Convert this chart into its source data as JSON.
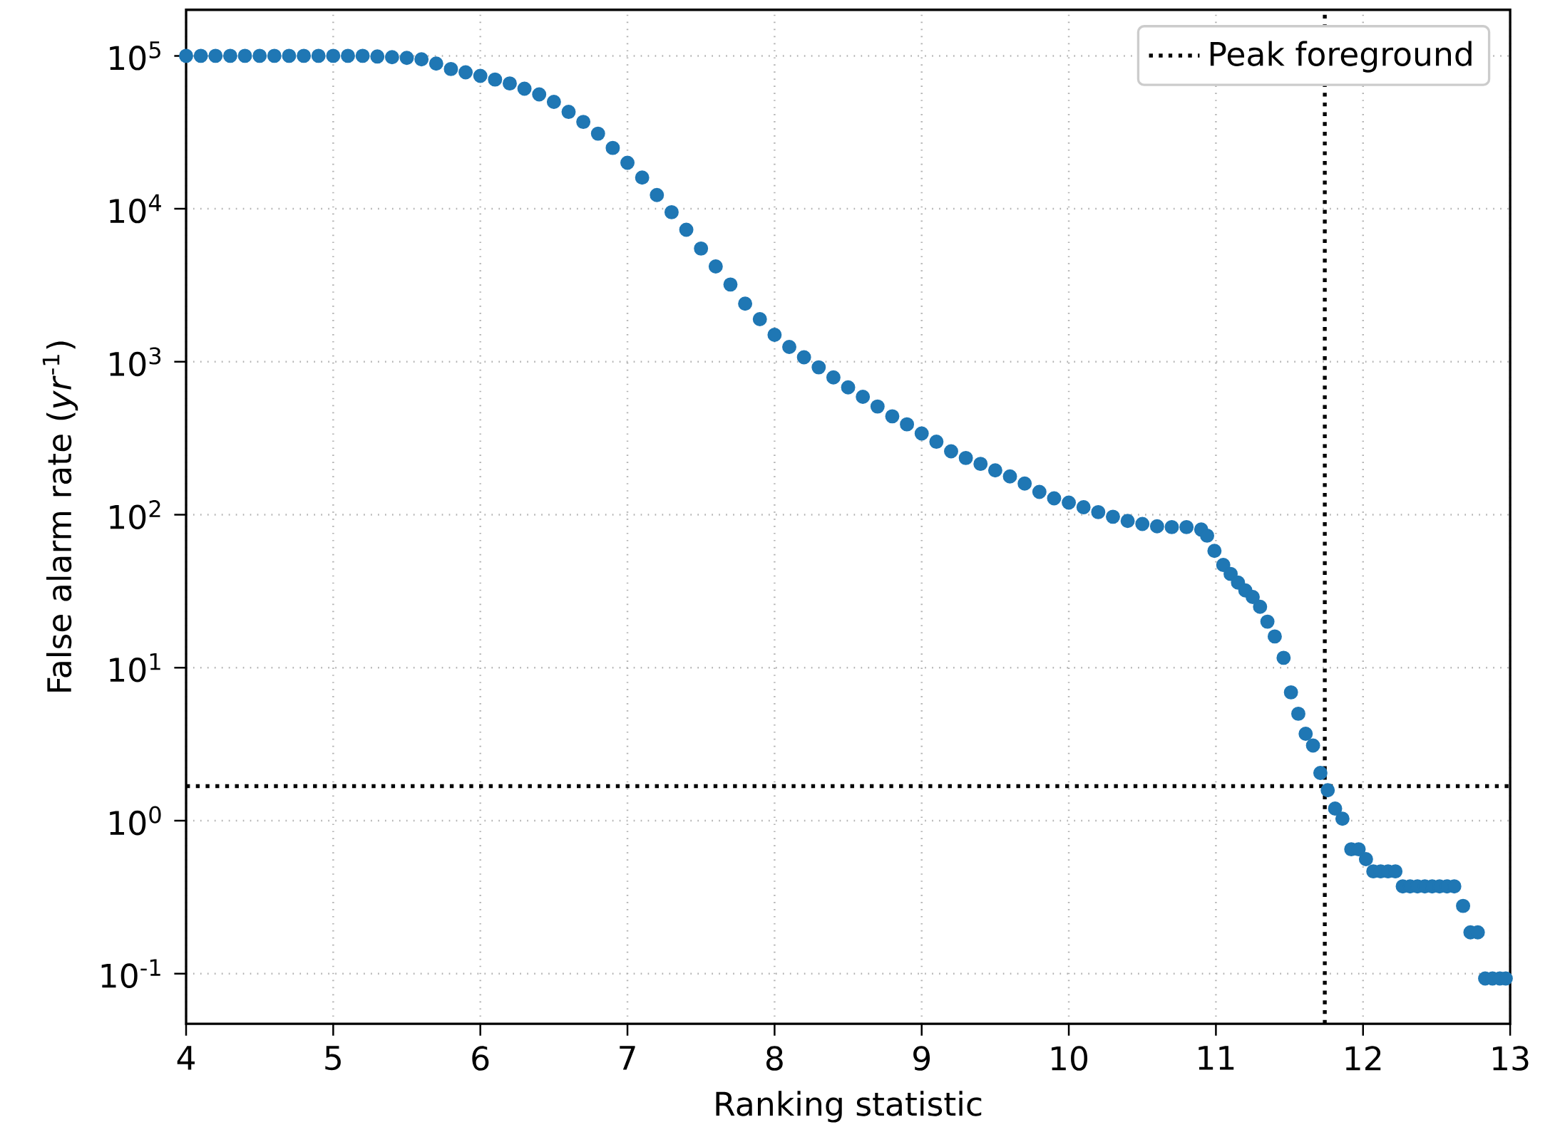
{
  "chart_data": {
    "type": "scatter",
    "xlabel": "Ranking statistic",
    "ylabel": "False alarm rate (*yr*$^{-1}$)",
    "xlim": [
      4,
      13
    ],
    "ylim": [
      0.047,
      200000
    ],
    "log": "y",
    "grid": true,
    "legend": "top right",
    "xticks": [
      4,
      5,
      6,
      7,
      8,
      9,
      10,
      11,
      12,
      13
    ],
    "yticks": [
      {
        "value": 0.1,
        "label": "10$^{-1}$"
      },
      {
        "value": 1,
        "label": "10$^{0}$"
      },
      {
        "value": 10,
        "label": "10$^{1}$"
      },
      {
        "value": 100,
        "label": "10$^{2}$"
      },
      {
        "value": 1000,
        "label": "10$^{3}$"
      },
      {
        "value": 10000,
        "label": "10$^{4}$"
      },
      {
        "value": 100000,
        "label": "10$^{5}$"
      }
    ],
    "ref_lines": [
      {
        "axis": "x",
        "value": 11.74,
        "label": "Peak foreground",
        "color": "#000000",
        "line_style": "dotted"
      },
      {
        "axis": "y",
        "value": 1.68,
        "color": "#000000",
        "line_style": "dotted"
      }
    ],
    "series": [
      {
        "color": "#1f77b4",
        "x": [
          4.0,
          4.1,
          4.2,
          4.3,
          4.4,
          4.5,
          4.6,
          4.7,
          4.8,
          4.9,
          5.0,
          5.1,
          5.2,
          5.3,
          5.4,
          5.5,
          5.6,
          5.7,
          5.8,
          5.9,
          6.0,
          6.1,
          6.2,
          6.3,
          6.4,
          6.5,
          6.6,
          6.7,
          6.8,
          6.9,
          7.0,
          7.1,
          7.2,
          7.3,
          7.4,
          7.5,
          7.6,
          7.7,
          7.8,
          7.9,
          8.0,
          8.1,
          8.2,
          8.3,
          8.4,
          8.5,
          8.6,
          8.7,
          8.8,
          8.9,
          9.0,
          9.1,
          9.2,
          9.3,
          9.4,
          9.5,
          9.6,
          9.7,
          9.8,
          9.9,
          10.0,
          10.1,
          10.2,
          10.3,
          10.4,
          10.5,
          10.6,
          10.7,
          10.8,
          10.9,
          10.94,
          10.99,
          11.05,
          11.1,
          11.15,
          11.2,
          11.25,
          11.3,
          11.35,
          11.4,
          11.46,
          11.51,
          11.56,
          11.61,
          11.66,
          11.71,
          11.76,
          11.81,
          11.86,
          11.92,
          11.97,
          12.02,
          12.07,
          12.12,
          12.17,
          12.22,
          12.27,
          12.32,
          12.37,
          12.42,
          12.47,
          12.52,
          12.57,
          12.62,
          12.68,
          12.73,
          12.78,
          12.83,
          12.88,
          12.93,
          12.97
        ],
        "values": [
          100000,
          100000,
          100000,
          100000,
          100000,
          100000,
          100000,
          100000,
          100000,
          100000,
          100000,
          100000,
          100000,
          99000,
          98000,
          97000,
          95000,
          89000,
          82000,
          78000,
          74000,
          70000,
          66000,
          61000,
          56000,
          50000,
          43000,
          37000,
          31000,
          25000,
          20000,
          16000,
          12300,
          9500,
          7300,
          5500,
          4200,
          3200,
          2400,
          1900,
          1500,
          1250,
          1070,
          920,
          790,
          680,
          590,
          510,
          440,
          390,
          340,
          300,
          260,
          235,
          215,
          195,
          178,
          160,
          141,
          128,
          120,
          112,
          104,
          97,
          91,
          87,
          84,
          83,
          83,
          80,
          73,
          58,
          47,
          41,
          36,
          32,
          29,
          25,
          20,
          16,
          11.6,
          6.9,
          5.0,
          3.7,
          3.1,
          2.05,
          1.58,
          1.2,
          1.03,
          0.65,
          0.65,
          0.56,
          0.466,
          0.466,
          0.466,
          0.466,
          0.372,
          0.372,
          0.372,
          0.372,
          0.372,
          0.372,
          0.372,
          0.372,
          0.277,
          0.186,
          0.186,
          0.093,
          0.093,
          0.093,
          0.093
        ]
      }
    ]
  }
}
